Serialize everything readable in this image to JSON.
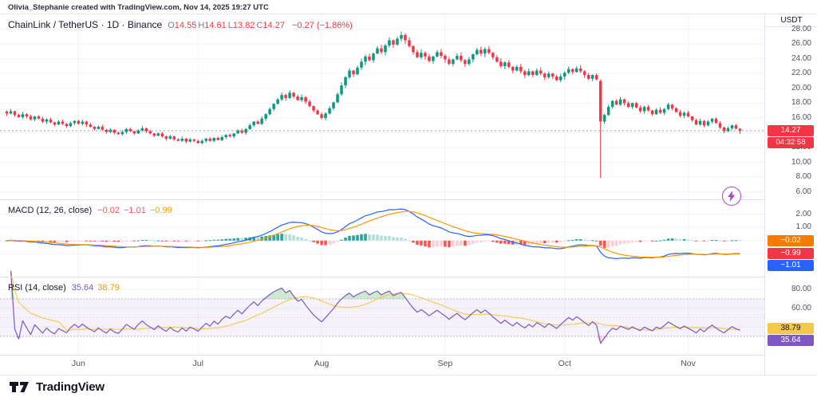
{
  "attribution": "Olivia_Stephanie created with TradingView.com, Nov 14, 2025 19:27 UTC",
  "header": {
    "symbol_title": "ChainLink / TetherUS · 1D · Binance",
    "ohlc": [
      {
        "label": "O",
        "value": "14.55"
      },
      {
        "label": "H",
        "value": "14.61"
      },
      {
        "label": "L",
        "value": "13.82"
      },
      {
        "label": "C",
        "value": "14.27"
      }
    ],
    "change": "−0.27 (−1.86%)"
  },
  "price_scale": {
    "currency": "USDT",
    "ticks": [
      {
        "v": 28,
        "label": "28.00"
      },
      {
        "v": 26,
        "label": "26.00"
      },
      {
        "v": 24,
        "label": "24.00"
      },
      {
        "v": 22,
        "label": "22.00"
      },
      {
        "v": 20,
        "label": "20.00"
      },
      {
        "v": 18,
        "label": "18.00"
      },
      {
        "v": 16,
        "label": "16.00"
      },
      {
        "v": 12,
        "label": "12.00"
      },
      {
        "v": 10,
        "label": "10.00"
      },
      {
        "v": 8,
        "label": "8.00"
      },
      {
        "v": 6,
        "label": "6.00"
      }
    ],
    "gridlines": [
      28,
      26,
      24,
      22,
      20,
      18,
      16,
      14,
      12,
      10,
      8,
      6
    ],
    "last_price_badge": {
      "text": "14.27",
      "countdown": "04:32:58",
      "bg": "#f23645",
      "fg": "#ffffff"
    }
  },
  "macd_panel": {
    "title": "MACD (12, 26, close)",
    "values": [
      {
        "text": "−0.02",
        "color": "#f7525f"
      },
      {
        "text": "−1.01",
        "color": "#f7525f"
      },
      {
        "text": "−0.99",
        "color": "#ff9800"
      }
    ],
    "ticks": [
      {
        "v": 2,
        "label": "2.00"
      },
      {
        "v": 1,
        "label": "1.00"
      }
    ],
    "gridlines": [
      2,
      1,
      0,
      -1
    ],
    "badges": [
      {
        "v": -0.02,
        "text": "−0.02",
        "bg": "#f57c00",
        "fg": "#ffffff"
      },
      {
        "v": -0.99,
        "text": "−0.99",
        "bg": "#f23645",
        "fg": "#ffffff"
      },
      {
        "v": -1.01,
        "text": "−1.01",
        "bg": "#2962ff",
        "fg": "#ffffff"
      }
    ]
  },
  "rsi_panel": {
    "title": "RSI (14, close)",
    "values": [
      {
        "text": "35.64",
        "color": "#7e57c2"
      },
      {
        "text": "38.79",
        "color": "#d9a400"
      }
    ],
    "ticks": [
      {
        "v": 80,
        "label": "80.00"
      },
      {
        "v": 60,
        "label": "60.00"
      }
    ],
    "gridlines": [
      80,
      60,
      40
    ],
    "band": {
      "upper": 70,
      "middle": 50,
      "lower": 30
    },
    "badges": [
      {
        "v": 38.79,
        "text": "38.79",
        "bg": "#f2c94c",
        "fg": "#131722"
      },
      {
        "v": 35.64,
        "text": "35.64",
        "bg": "#7e57c2",
        "fg": "#ffffff"
      }
    ]
  },
  "time_axis": {
    "months": [
      {
        "label": "Jun",
        "i": 18
      },
      {
        "label": "Jul",
        "i": 48
      },
      {
        "label": "Aug",
        "i": 79
      },
      {
        "label": "Sep",
        "i": 110
      },
      {
        "label": "Oct",
        "i": 140
      },
      {
        "label": "Nov",
        "i": 171
      }
    ]
  },
  "footer_logo": "TradingView",
  "quick_trade_icon": "lightning-bolt",
  "colors": {
    "up": "#089981",
    "down": "#f23645",
    "macd_line": "#2962ff",
    "signal_line": "#ff9800",
    "hist_up": "#26a69a",
    "hist_up_weak": "#b2dfdb",
    "hist_down": "#ff5252",
    "hist_down_weak": "#ffcdd2",
    "rsi_line": "#7e57c2",
    "rsi_ma_line": "#f2c94c",
    "band_fill": "rgba(126,87,194,0.08)",
    "band_edge": "rgba(126,87,194,0.45)",
    "overbought_fill": "rgba(76,175,80,0.28)",
    "oversold_fill": "rgba(242,54,69,0.20)",
    "grid": "#f0f3fa",
    "axis_line": "#e0e3eb",
    "price_line": "#9598a1"
  },
  "chart_data": {
    "type": "candlestick",
    "title": "ChainLink / TetherUS",
    "exchange": "Binance",
    "interval": "1D",
    "last_bar": {
      "open": 14.55,
      "high": 14.61,
      "low": 13.82,
      "close": 14.27,
      "change": -0.27,
      "change_pct": -1.86
    },
    "price_range": [
      5,
      30
    ],
    "macd_range": [
      -2.6,
      3.0
    ],
    "rsi_range": [
      12,
      92
    ],
    "closes": [
      16.6,
      16.9,
      16.4,
      16.1,
      16.5,
      16.2,
      15.8,
      16.2,
      15.9,
      15.5,
      15.8,
      15.4,
      15.1,
      15.5,
      15.2,
      14.9,
      15.3,
      15.6,
      15.2,
      15.5,
      15.1,
      14.8,
      14.5,
      14.8,
      14.4,
      14.1,
      14.4,
      14.0,
      13.8,
      14.1,
      14.5,
      14.2,
      13.9,
      14.3,
      14.6,
      14.2,
      13.9,
      13.6,
      13.9,
      13.5,
      13.2,
      13.5,
      13.1,
      12.9,
      13.2,
      12.8,
      13.1,
      12.9,
      12.6,
      12.9,
      13.2,
      12.9,
      13.3,
      13.0,
      13.4,
      13.7,
      13.5,
      13.9,
      14.3,
      14.0,
      14.5,
      15.0,
      15.5,
      15.2,
      15.9,
      16.5,
      17.2,
      17.9,
      18.5,
      19.1,
      18.7,
      19.4,
      18.9,
      18.4,
      18.8,
      18.2,
      17.6,
      17.0,
      16.5,
      16.0,
      16.6,
      17.3,
      18.1,
      19.2,
      20.4,
      21.5,
      22.4,
      21.9,
      22.8,
      23.6,
      24.3,
      23.8,
      24.7,
      25.4,
      24.9,
      25.8,
      26.5,
      25.9,
      26.7,
      27.2,
      26.5,
      25.7,
      24.9,
      24.2,
      24.8,
      24.3,
      23.7,
      24.3,
      24.9,
      24.4,
      23.9,
      23.3,
      23.9,
      24.4,
      23.8,
      23.3,
      23.9,
      24.6,
      25.2,
      24.7,
      25.3,
      24.8,
      24.2,
      23.6,
      23.0,
      23.5,
      22.9,
      22.4,
      22.9,
      22.3,
      21.8,
      22.3,
      21.8,
      22.4,
      22.0,
      21.5,
      22.0,
      21.6,
      21.1,
      21.6,
      22.1,
      22.6,
      22.2,
      22.7,
      22.3,
      21.8,
      21.3,
      21.8,
      21.2,
      15.5,
      16.4,
      17.5,
      18.3,
      17.8,
      18.5,
      18.0,
      17.5,
      18.0,
      17.4,
      16.9,
      17.5,
      17.0,
      16.5,
      17.1,
      16.7,
      17.2,
      17.8,
      17.3,
      16.8,
      16.3,
      16.7,
      16.2,
      15.7,
      15.1,
      15.6,
      15.0,
      15.5,
      15.9,
      15.3,
      14.7,
      14.2,
      14.6,
      15.0,
      14.54,
      14.27
    ],
    "overrides": [
      {
        "i": 149,
        "o": 21.0,
        "h": 21.2,
        "l": 7.9,
        "c": 15.5
      },
      {
        "i": 184,
        "o": 14.55,
        "h": 14.61,
        "l": 13.82,
        "c": 14.27
      }
    ],
    "wick_pattern": [
      0.9,
      1.5,
      0.5,
      1.2,
      1.8,
      0.7,
      1.3,
      0.4,
      1.0,
      1.6
    ],
    "indicators": {
      "macd": {
        "fast": 12,
        "slow": 26,
        "signal": 9,
        "last": {
          "hist": -0.02,
          "macd": -1.01,
          "signal": -0.99
        }
      },
      "rsi": {
        "length": 14,
        "ma_length": 14,
        "last": {
          "rsi": 35.64,
          "ma": 38.79
        }
      }
    }
  }
}
